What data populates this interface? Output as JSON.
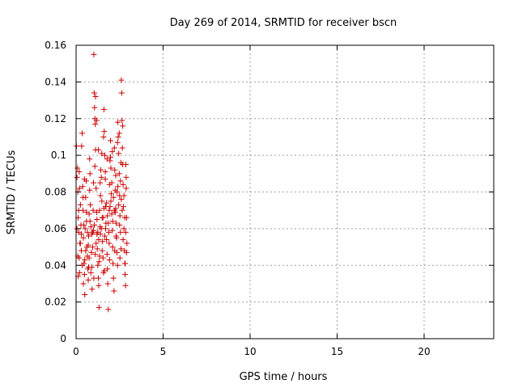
{
  "chart_data": {
    "type": "scatter",
    "title": "Day 269 of 2014, SRMTID for receiver bscn",
    "xlabel": "GPS time / hours",
    "ylabel": "SRMTID / TECUs",
    "xlim": [
      0,
      24
    ],
    "ylim": [
      0,
      0.16
    ],
    "xticks": [
      0,
      5,
      10,
      15,
      20
    ],
    "xtick_labels": [
      "0",
      "5",
      "10",
      "15",
      "20"
    ],
    "yticks": [
      0,
      0.02,
      0.04,
      0.06,
      0.08,
      0.1,
      0.12,
      0.14,
      0.16
    ],
    "ytick_labels": [
      "0",
      "0.02",
      "0.04",
      "0.06",
      "0.08",
      "0.1",
      "0.12",
      "0.14",
      "0.16"
    ],
    "grid": true,
    "marker": "+",
    "color": "#cc0000",
    "series": [
      {
        "name": "SRMTID",
        "points": [
          [
            0.02,
            0.105
          ],
          [
            0.05,
            0.088
          ],
          [
            0.08,
            0.093
          ],
          [
            0.1,
            0.08
          ],
          [
            0.12,
            0.066
          ],
          [
            0.15,
            0.058
          ],
          [
            0.18,
            0.044
          ],
          [
            0.2,
            0.036
          ],
          [
            0.22,
            0.052
          ],
          [
            0.25,
            0.073
          ],
          [
            0.28,
            0.062
          ],
          [
            0.3,
            0.048
          ],
          [
            0.32,
            0.105
          ],
          [
            0.35,
            0.112
          ],
          [
            0.38,
            0.083
          ],
          [
            0.4,
            0.07
          ],
          [
            0.42,
            0.055
          ],
          [
            0.45,
            0.041
          ],
          [
            0.48,
            0.035
          ],
          [
            0.5,
            0.024
          ],
          [
            0.52,
            0.06
          ],
          [
            0.55,
            0.077
          ],
          [
            0.58,
            0.086
          ],
          [
            0.6,
            0.064
          ],
          [
            0.62,
            0.05
          ],
          [
            0.65,
            0.045
          ],
          [
            0.68,
            0.038
          ],
          [
            0.7,
            0.032
          ],
          [
            0.72,
            0.056
          ],
          [
            0.75,
            0.068
          ],
          [
            0.78,
            0.098
          ],
          [
            0.8,
            0.09
          ],
          [
            0.82,
            0.073
          ],
          [
            0.85,
            0.061
          ],
          [
            0.88,
            0.047
          ],
          [
            0.9,
            0.039
          ],
          [
            0.92,
            0.027
          ],
          [
            0.95,
            0.058
          ],
          [
            0.98,
            0.07
          ],
          [
            1.0,
            0.085
          ],
          [
            1.02,
            0.155
          ],
          [
            1.04,
            0.134
          ],
          [
            1.06,
            0.126
          ],
          [
            1.08,
            0.12
          ],
          [
            1.1,
            0.117
          ],
          [
            1.12,
            0.103
          ],
          [
            1.15,
            0.082
          ],
          [
            1.18,
            0.069
          ],
          [
            1.2,
            0.057
          ],
          [
            1.22,
            0.049
          ],
          [
            1.25,
            0.04
          ],
          [
            1.28,
            0.033
          ],
          [
            1.3,
            0.029
          ],
          [
            1.32,
            0.017
          ],
          [
            1.35,
            0.045
          ],
          [
            1.38,
            0.061
          ],
          [
            1.4,
            0.078
          ],
          [
            1.42,
            0.092
          ],
          [
            1.45,
            0.088
          ],
          [
            1.48,
            0.075
          ],
          [
            1.5,
            0.066
          ],
          [
            1.52,
            0.053
          ],
          [
            1.55,
            0.044
          ],
          [
            1.58,
            0.036
          ],
          [
            1.6,
            0.125
          ],
          [
            1.62,
            0.113
          ],
          [
            1.65,
            0.1
          ],
          [
            1.68,
            0.087
          ],
          [
            1.7,
            0.072
          ],
          [
            1.72,
            0.063
          ],
          [
            1.75,
            0.054
          ],
          [
            1.78,
            0.046
          ],
          [
            1.8,
            0.038
          ],
          [
            1.82,
            0.03
          ],
          [
            1.85,
            0.016
          ],
          [
            1.88,
            0.058
          ],
          [
            1.9,
            0.07
          ],
          [
            1.92,
            0.084
          ],
          [
            1.95,
            0.097
          ],
          [
            1.98,
            0.108
          ],
          [
            2.0,
            0.093
          ],
          [
            2.02,
            0.079
          ],
          [
            2.05,
            0.068
          ],
          [
            2.08,
            0.059
          ],
          [
            2.1,
            0.05
          ],
          [
            2.12,
            0.041
          ],
          [
            2.15,
            0.033
          ],
          [
            2.18,
            0.026
          ],
          [
            2.2,
            0.104
          ],
          [
            2.22,
            0.092
          ],
          [
            2.25,
            0.081
          ],
          [
            2.28,
            0.071
          ],
          [
            2.3,
            0.063
          ],
          [
            2.32,
            0.055
          ],
          [
            2.35,
            0.047
          ],
          [
            2.38,
            0.04
          ],
          [
            2.4,
            0.118
          ],
          [
            2.42,
            0.11
          ],
          [
            2.45,
            0.101
          ],
          [
            2.48,
            0.09
          ],
          [
            2.5,
            0.078
          ],
          [
            2.52,
            0.067
          ],
          [
            2.55,
            0.058
          ],
          [
            2.58,
            0.049
          ],
          [
            2.6,
            0.141
          ],
          [
            2.62,
            0.134
          ],
          [
            2.64,
            0.119
          ],
          [
            2.66,
            0.104
          ],
          [
            2.68,
            0.095
          ],
          [
            2.7,
            0.084
          ],
          [
            2.72,
            0.072
          ],
          [
            2.75,
            0.06
          ],
          [
            2.78,
            0.048
          ],
          [
            2.8,
            0.041
          ],
          [
            2.82,
            0.035
          ],
          [
            2.84,
            0.029
          ],
          [
            2.86,
            0.095
          ],
          [
            2.88,
            0.082
          ],
          [
            2.9,
            0.066
          ],
          [
            2.92,
            0.052
          ],
          [
            0.05,
            0.06
          ],
          [
            0.15,
            0.07
          ],
          [
            0.25,
            0.052
          ],
          [
            0.35,
            0.04
          ],
          [
            0.45,
            0.062
          ],
          [
            0.55,
            0.048
          ],
          [
            0.65,
            0.058
          ],
          [
            0.75,
            0.044
          ],
          [
            0.85,
            0.036
          ],
          [
            0.95,
            0.05
          ],
          [
            1.05,
            0.062
          ],
          [
            1.15,
            0.052
          ],
          [
            1.25,
            0.058
          ],
          [
            1.35,
            0.07
          ],
          [
            1.45,
            0.06
          ],
          [
            1.55,
            0.066
          ],
          [
            1.65,
            0.056
          ],
          [
            1.75,
            0.074
          ],
          [
            1.85,
            0.063
          ],
          [
            1.95,
            0.072
          ],
          [
            2.05,
            0.085
          ],
          [
            2.15,
            0.077
          ],
          [
            2.25,
            0.069
          ],
          [
            2.35,
            0.08
          ],
          [
            2.45,
            0.073
          ],
          [
            2.55,
            0.086
          ],
          [
            2.65,
            0.07
          ],
          [
            2.75,
            0.078
          ],
          [
            2.85,
            0.058
          ],
          [
            0.1,
            0.045
          ],
          [
            0.3,
            0.057
          ],
          [
            0.5,
            0.043
          ],
          [
            0.7,
            0.051
          ],
          [
            0.9,
            0.057
          ],
          [
            1.1,
            0.046
          ],
          [
            1.3,
            0.054
          ],
          [
            1.5,
            0.048
          ],
          [
            1.7,
            0.06
          ],
          [
            1.9,
            0.052
          ],
          [
            2.1,
            0.064
          ],
          [
            2.3,
            0.056
          ],
          [
            2.5,
            0.062
          ],
          [
            2.7,
            0.054
          ],
          [
            2.9,
            0.047
          ],
          [
            0.2,
            0.082
          ],
          [
            0.4,
            0.077
          ],
          [
            0.6,
            0.069
          ],
          [
            0.8,
            0.064
          ],
          [
            1.0,
            0.059
          ],
          [
            1.2,
            0.065
          ],
          [
            1.4,
            0.057
          ],
          [
            1.6,
            0.071
          ],
          [
            1.8,
            0.067
          ],
          [
            2.0,
            0.075
          ],
          [
            2.2,
            0.07
          ],
          [
            2.4,
            0.083
          ],
          [
            2.6,
            0.076
          ],
          [
            2.8,
            0.066
          ],
          [
            0.12,
            0.034
          ],
          [
            0.42,
            0.03
          ],
          [
            0.72,
            0.039
          ],
          [
            1.02,
            0.033
          ],
          [
            1.32,
            0.042
          ],
          [
            1.62,
            0.037
          ],
          [
            1.92,
            0.043
          ],
          [
            2.22,
            0.048
          ],
          [
            2.52,
            0.044
          ],
          [
            2.82,
            0.041
          ],
          [
            0.18,
            0.091
          ],
          [
            0.48,
            0.087
          ],
          [
            0.78,
            0.081
          ],
          [
            1.08,
            0.094
          ],
          [
            1.38,
            0.085
          ],
          [
            1.68,
            0.091
          ],
          [
            1.98,
            0.099
          ],
          [
            2.28,
            0.089
          ],
          [
            2.58,
            0.096
          ],
          [
            2.88,
            0.088
          ],
          [
            1.12,
            0.132
          ],
          [
            1.18,
            0.119
          ],
          [
            1.28,
            0.103
          ],
          [
            1.48,
            0.101
          ],
          [
            1.58,
            0.11
          ],
          [
            1.78,
            0.098
          ],
          [
            2.08,
            0.102
          ],
          [
            2.38,
            0.107
          ],
          [
            2.48,
            0.112
          ],
          [
            2.68,
            0.116
          ]
        ]
      }
    ]
  }
}
